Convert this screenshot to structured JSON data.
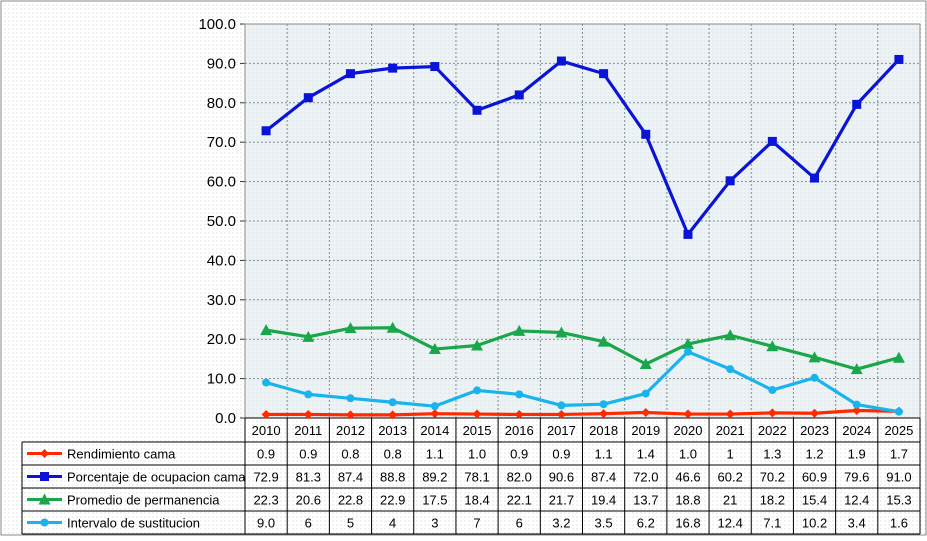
{
  "chart_data": {
    "type": "line",
    "x": [
      "2010",
      "2011",
      "2012",
      "2013",
      "2014",
      "2015",
      "2016",
      "2017",
      "2018",
      "2019",
      "2020",
      "2021",
      "2022",
      "2023",
      "2024",
      "2025"
    ],
    "ylim": [
      0,
      100
    ],
    "yticks": [
      "0.0",
      "10.0",
      "20.0",
      "30.0",
      "40.0",
      "50.0",
      "60.0",
      "70.0",
      "80.0",
      "90.0",
      "100.0"
    ],
    "grid": true,
    "legend_placement": "data-table-rows",
    "series": [
      {
        "name": "Rendimiento cama",
        "color": "#ff2a00",
        "marker": "diamond",
        "values": [
          0.9,
          0.9,
          0.8,
          0.8,
          1.1,
          1.0,
          0.9,
          0.9,
          1.1,
          1.4,
          1.0,
          1,
          1.3,
          1.2,
          1.9,
          1.7
        ],
        "labels": [
          "0.9",
          "0.9",
          "0.8",
          "0.8",
          "1.1",
          "1.0",
          "0.9",
          "0.9",
          "1.1",
          "1.4",
          "1.0",
          "1",
          "1.3",
          "1.2",
          "1.9",
          "1.7"
        ]
      },
      {
        "name": "Porcentaje de ocupacion cama",
        "color": "#0a14d6",
        "marker": "square",
        "values": [
          72.9,
          81.3,
          87.4,
          88.8,
          89.2,
          78.1,
          82.0,
          90.6,
          87.4,
          72.0,
          46.6,
          60.2,
          70.2,
          60.9,
          79.6,
          91.0
        ],
        "labels": [
          "72.9",
          "81.3",
          "87.4",
          "88.8",
          "89.2",
          "78.1",
          "82.0",
          "90.6",
          "87.4",
          "72.0",
          "46.6",
          "60.2",
          "70.2",
          "60.9",
          "79.6",
          "91.0"
        ]
      },
      {
        "name": "Promedio de permanencia",
        "color": "#1aa64a",
        "marker": "triangle",
        "values": [
          22.3,
          20.6,
          22.8,
          22.9,
          17.5,
          18.4,
          22.1,
          21.7,
          19.4,
          13.7,
          18.8,
          21,
          18.2,
          15.4,
          12.4,
          15.3
        ],
        "labels": [
          "22.3",
          "20.6",
          "22.8",
          "22.9",
          "17.5",
          "18.4",
          "22.1",
          "21.7",
          "19.4",
          "13.7",
          "18.8",
          "21",
          "18.2",
          "15.4",
          "12.4",
          "15.3"
        ]
      },
      {
        "name": "Intervalo de sustitucion",
        "color": "#1ab4ec",
        "marker": "circle",
        "values": [
          9.0,
          6,
          5,
          4,
          3,
          7,
          6,
          3.2,
          3.5,
          6.2,
          16.8,
          12.4,
          7.1,
          10.2,
          3.4,
          1.6
        ],
        "labels": [
          "9.0",
          "6",
          "5",
          "4",
          "3",
          "7",
          "6",
          "3.2",
          "3.5",
          "6.2",
          "16.8",
          "12.4",
          "7.1",
          "10.2",
          "3.4",
          "1.6"
        ]
      }
    ]
  }
}
